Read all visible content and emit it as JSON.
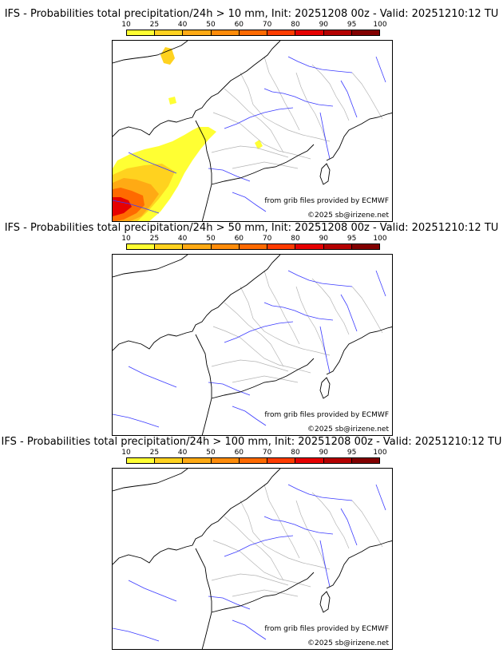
{
  "legend": {
    "ticks": [
      "10",
      "25",
      "40",
      "50",
      "60",
      "70",
      "80",
      "90",
      "95",
      "100"
    ],
    "colors": [
      "#ffff33",
      "#ffd21f",
      "#ffaa14",
      "#ff8c0a",
      "#ff6a00",
      "#ff3c00",
      "#e60000",
      "#b40000",
      "#820000",
      "#550000"
    ]
  },
  "map_colors": {
    "coast": "#000000",
    "rivers": "#3a3aff",
    "borders": "#b4b4b4"
  },
  "panels": [
    {
      "title": "IFS - Probabilities total precipitation/24h > 10 mm, Init: 20251208 00z - Valid: 20251210:12 TU",
      "source": "from grib files provided by ECMWF",
      "copyright": "©2025 sb@irizene.net"
    },
    {
      "title": "IFS - Probabilities total precipitation/24h > 50 mm, Init: 20251208 00z - Valid: 20251210:12 TU",
      "source": "from grib files provided by ECMWF",
      "copyright": "©2025 sb@irizene.net"
    },
    {
      "title": "IFS - Probabilities total precipitation/24h > 100 mm, Init: 20251208 00z - Valid: 20251210:12 TU",
      "source": "from grib files provided by ECMWF",
      "copyright": "©2025 sb@irizene.net"
    }
  ]
}
